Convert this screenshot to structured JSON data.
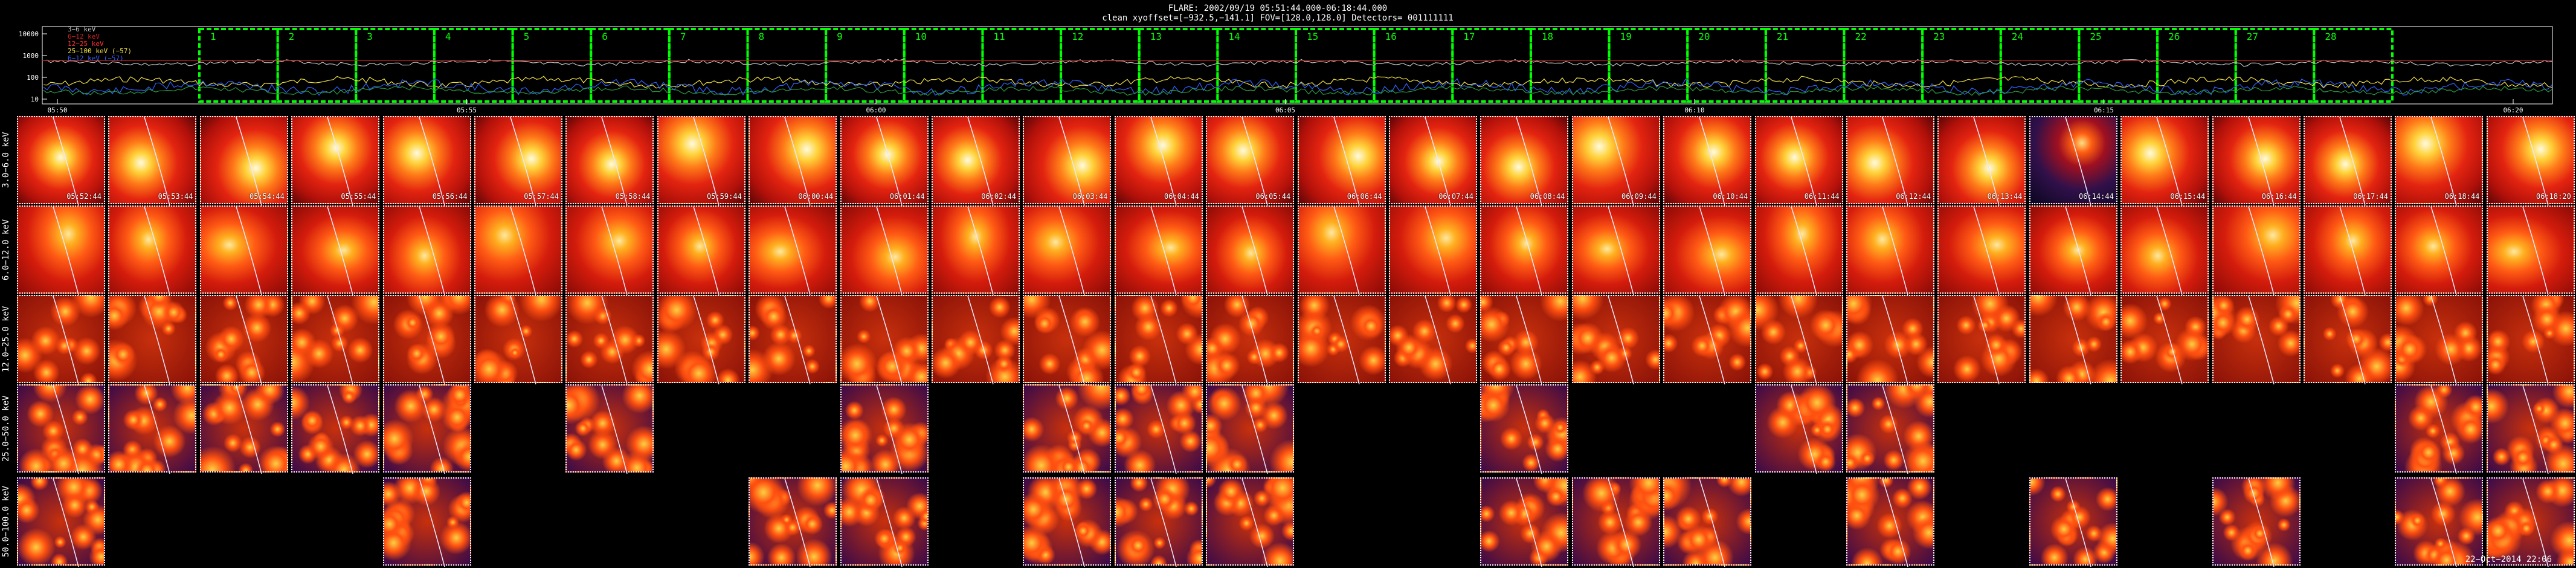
{
  "header": {
    "line1": "FLARE: 2002/09/19 05:51:44.000-06:18:44.000",
    "line2": "clean    xyoffset=[−932.5,−141.1]    FOV=[128.0,128.0]    Detectors= 001111111"
  },
  "lightcurve": {
    "yticks": [
      "10000",
      "1000",
      "100",
      "10"
    ],
    "legend": [
      {
        "label": "3−6 keV",
        "color": "#c0c0c0"
      },
      {
        "label": "6−12 keV",
        "color": "#d02020"
      },
      {
        "label": "12−25 keV",
        "color": "#ff3030"
      },
      {
        "label": "25−100 keV (−57)",
        "color": "#f0e040"
      },
      {
        "label": "6−12 keV (−57)",
        "color": "#3060ff"
      }
    ],
    "xticks": [
      "05:50",
      "05:55",
      "06:00",
      "06:05",
      "06:10",
      "06:15",
      "06:20"
    ],
    "interval_numbers": [
      "1",
      "2",
      "3",
      "4",
      "5",
      "6",
      "7",
      "8",
      "9",
      "10",
      "11",
      "12",
      "13",
      "14",
      "15",
      "16",
      "17",
      "18",
      "19",
      "20",
      "21",
      "22",
      "23",
      "24",
      "25",
      "26",
      "27",
      "28"
    ],
    "box_color": "#00ff00"
  },
  "bands": [
    "3.0−6.0 keV",
    "6.0−12.0 keV",
    "12.0−25.0 keV",
    "25.0−50.0 keV",
    "50.0−100.0 keV"
  ],
  "times": [
    "05:52:44",
    "05:53:44",
    "05:54:44",
    "05:55:44",
    "05:56:44",
    "05:57:44",
    "05:58:44",
    "05:59:44",
    "06:00:44",
    "06:01:44",
    "06:02:44",
    "06:03:44",
    "06:04:44",
    "06:05:44",
    "06:06:44",
    "06:07:44",
    "06:08:44",
    "06:09:44",
    "06:10:44",
    "06:11:44",
    "06:12:44",
    "06:13:44",
    "06:14:44",
    "06:15:44",
    "06:16:44",
    "06:17:44",
    "06:18:44",
    "06:18:20"
  ],
  "presence": {
    "row4": [
      1,
      1,
      1,
      1,
      1,
      0,
      1,
      0,
      0,
      1,
      0,
      1,
      1,
      1,
      0,
      0,
      1,
      0,
      0,
      1,
      1,
      0,
      0,
      0,
      0,
      0,
      1,
      1
    ],
    "row5": [
      1,
      0,
      0,
      0,
      1,
      0,
      0,
      0,
      1,
      1,
      0,
      1,
      1,
      1,
      0,
      0,
      1,
      1,
      1,
      0,
      1,
      0,
      1,
      0,
      1,
      0,
      1,
      1
    ]
  },
  "stamp": "22−Oct−2014 22:06"
}
